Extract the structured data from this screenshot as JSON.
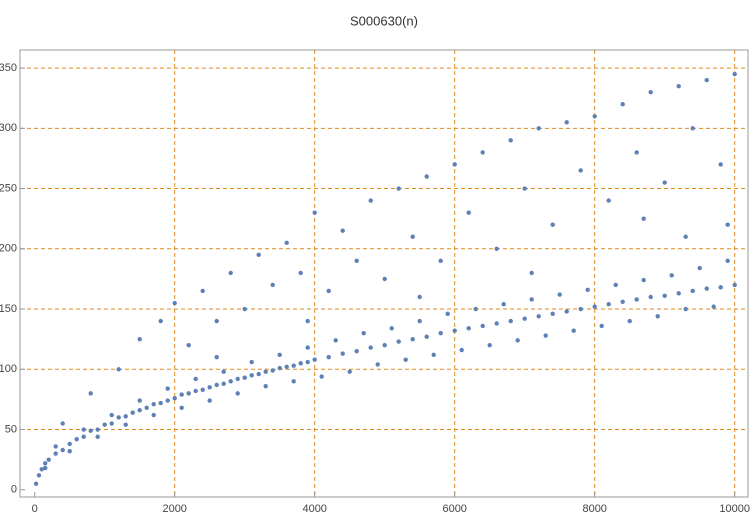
{
  "chart_data": {
    "type": "scatter",
    "title": "S000630(n)",
    "color": "#5e81b5",
    "grid": true,
    "grid_color": "#e08a1e",
    "xlim": [
      -210,
      10190
    ],
    "ylim": [
      -6,
      365
    ],
    "xticks": [
      0,
      2000,
      4000,
      6000,
      8000,
      10000
    ],
    "yticks": [
      0,
      50,
      100,
      150,
      200,
      250,
      300,
      350
    ],
    "x": [
      20,
      60,
      100,
      150,
      200,
      300,
      400,
      500,
      600,
      700,
      800,
      900,
      1000,
      1100,
      1200,
      1300,
      1400,
      1500,
      1600,
      1700,
      1800,
      1900,
      2000,
      2100,
      2200,
      2300,
      2400,
      2500,
      2600,
      2700,
      2800,
      2900,
      3000,
      3100,
      3200,
      3300,
      3400,
      3500,
      3600,
      3700,
      3800,
      3900,
      4000,
      4200,
      4400,
      4600,
      4800,
      5000,
      5200,
      5400,
      5600,
      5800,
      6000,
      6200,
      6400,
      6600,
      6800,
      7000,
      7200,
      7400,
      7600,
      7800,
      8000,
      8200,
      8400,
      8600,
      8800,
      9000,
      9200,
      9400,
      9600,
      9800,
      10000,
      150,
      300,
      500,
      700,
      900,
      1100,
      1300,
      1500,
      1700,
      1900,
      2100,
      2300,
      2500,
      2700,
      2900,
      3100,
      3300,
      3500,
      3700,
      3900,
      4100,
      4300,
      4500,
      4700,
      4900,
      5100,
      5300,
      5500,
      5700,
      5900,
      6100,
      6300,
      6500,
      6700,
      6900,
      7100,
      7300,
      7500,
      7700,
      7900,
      8100,
      8300,
      8500,
      8700,
      8900,
      9100,
      9300,
      9500,
      9700,
      9900,
      400,
      800,
      1200,
      1500,
      1800,
      2000,
      2200,
      2400,
      2600,
      2800,
      3000,
      3200,
      3400,
      3600,
      3800,
      4000,
      4200,
      4400,
      4600,
      4800,
      5000,
      5200,
      5400,
      5600,
      5800,
      6000,
      6200,
      6400,
      6600,
      6800,
      7000,
      7200,
      7400,
      7600,
      7800,
      8000,
      8200,
      8400,
      8600,
      8800,
      9000,
      9200,
      9400,
      9600,
      9800,
      10000,
      9900,
      9300,
      8700,
      7100,
      5500,
      3900,
      2600
    ],
    "values": [
      5,
      12,
      17,
      22,
      25,
      30,
      33,
      38,
      42,
      44,
      49,
      50,
      54,
      55,
      60,
      61,
      64,
      66,
      68,
      71,
      72,
      74,
      76,
      79,
      80,
      82,
      83,
      85,
      87,
      88,
      90,
      92,
      93,
      95,
      96,
      98,
      99,
      101,
      102,
      103,
      105,
      106,
      108,
      110,
      113,
      115,
      118,
      120,
      123,
      125,
      127,
      130,
      132,
      134,
      136,
      138,
      140,
      142,
      144,
      146,
      148,
      150,
      152,
      154,
      156,
      158,
      160,
      161,
      163,
      165,
      167,
      168,
      170,
      18,
      36,
      32,
      50,
      44,
      62,
      54,
      74,
      62,
      84,
      68,
      92,
      74,
      98,
      80,
      106,
      86,
      112,
      90,
      118,
      94,
      124,
      98,
      130,
      104,
      134,
      108,
      140,
      112,
      146,
      116,
      150,
      120,
      154,
      124,
      158,
      128,
      162,
      132,
      166,
      136,
      170,
      140,
      174,
      144,
      178,
      150,
      184,
      152,
      190,
      55,
      80,
      100,
      125,
      140,
      155,
      120,
      165,
      140,
      180,
      150,
      195,
      170,
      205,
      180,
      230,
      165,
      215,
      190,
      240,
      175,
      250,
      210,
      260,
      190,
      270,
      230,
      280,
      200,
      290,
      250,
      300,
      220,
      305,
      265,
      310,
      240,
      320,
      280,
      330,
      255,
      335,
      300,
      340,
      270,
      345,
      220,
      210,
      225,
      180,
      160,
      140,
      110
    ]
  }
}
